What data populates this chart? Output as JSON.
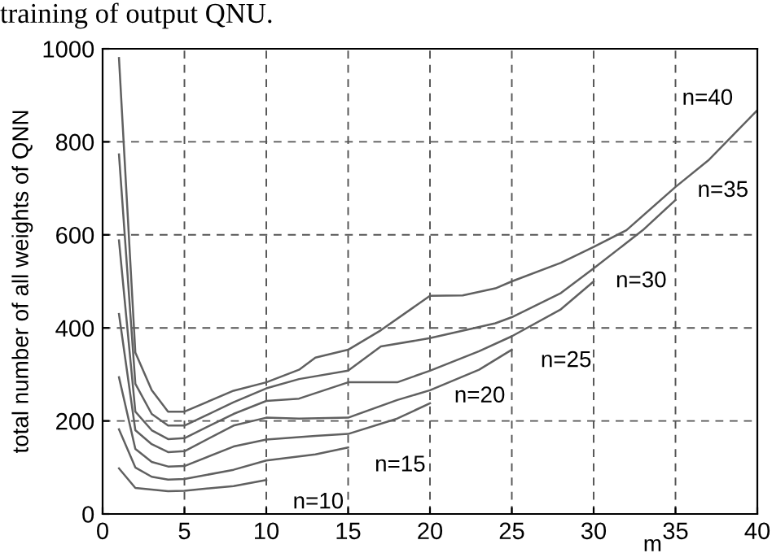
{
  "chart_data": {
    "type": "line",
    "ylabel": "total number of all weights of QNN",
    "xlabel": "m",
    "annotations": [
      "training of output QNU."
    ],
    "xlim": [
      0,
      40
    ],
    "ylim": [
      0,
      1000
    ],
    "xticks": [
      0,
      5,
      10,
      15,
      20,
      25,
      30,
      35,
      40
    ],
    "yticks": [
      0,
      200,
      400,
      600,
      800,
      1000
    ],
    "grid": true,
    "line_style": "solid",
    "marker": "none",
    "series": [
      {
        "name": "n=10",
        "color": "#606060",
        "x": [
          1,
          2,
          4,
          5,
          8,
          10
        ],
        "values": [
          98,
          56,
          49,
          50,
          60,
          73
        ]
      },
      {
        "name": "n=15",
        "color": "#606060",
        "x": [
          1,
          2,
          3,
          4,
          5,
          8,
          10,
          13,
          15
        ],
        "values": [
          182,
          100,
          80,
          74,
          75,
          95,
          115,
          128,
          143
        ]
      },
      {
        "name": "n=20",
        "color": "#606060",
        "x": [
          1,
          2,
          3,
          4,
          5,
          8,
          10,
          13,
          15,
          18,
          20
        ],
        "values": [
          294,
          140,
          112,
          102,
          103,
          145,
          160,
          168,
          172,
          205,
          238
        ]
      },
      {
        "name": "n=25",
        "color": "#606060",
        "x": [
          1,
          2,
          3,
          4,
          5,
          8,
          10,
          12,
          15,
          18,
          20,
          23,
          25
        ],
        "values": [
          430,
          180,
          150,
          133,
          135,
          190,
          207,
          205,
          207,
          245,
          266,
          310,
          353
        ]
      },
      {
        "name": "n=30",
        "color": "#606060",
        "x": [
          1,
          2,
          3,
          4,
          5,
          8,
          10,
          12,
          15,
          18,
          20,
          23,
          25,
          28,
          30
        ],
        "values": [
          588,
          220,
          180,
          161,
          163,
          215,
          243,
          248,
          283,
          283,
          308,
          350,
          382,
          440,
          500
        ]
      },
      {
        "name": "n=35",
        "color": "#606060",
        "x": [
          1,
          2,
          3,
          4,
          5,
          8,
          10,
          12,
          15,
          17,
          20,
          24,
          25,
          28,
          30,
          33,
          35
        ],
        "values": [
          773,
          280,
          215,
          190,
          190,
          240,
          270,
          290,
          308,
          360,
          378,
          410,
          423,
          475,
          528,
          610,
          675
        ]
      },
      {
        "name": "n=40",
        "color": "#606060",
        "x": [
          1,
          2,
          3,
          4,
          5,
          8,
          10,
          12,
          13,
          15,
          17,
          20,
          22,
          24,
          25,
          28,
          30,
          32,
          35,
          37,
          40
        ],
        "values": [
          980,
          347,
          266,
          220,
          220,
          265,
          283,
          310,
          336,
          353,
          395,
          469,
          470,
          485,
          500,
          540,
          574,
          610,
          703,
          760,
          868
        ]
      }
    ]
  }
}
